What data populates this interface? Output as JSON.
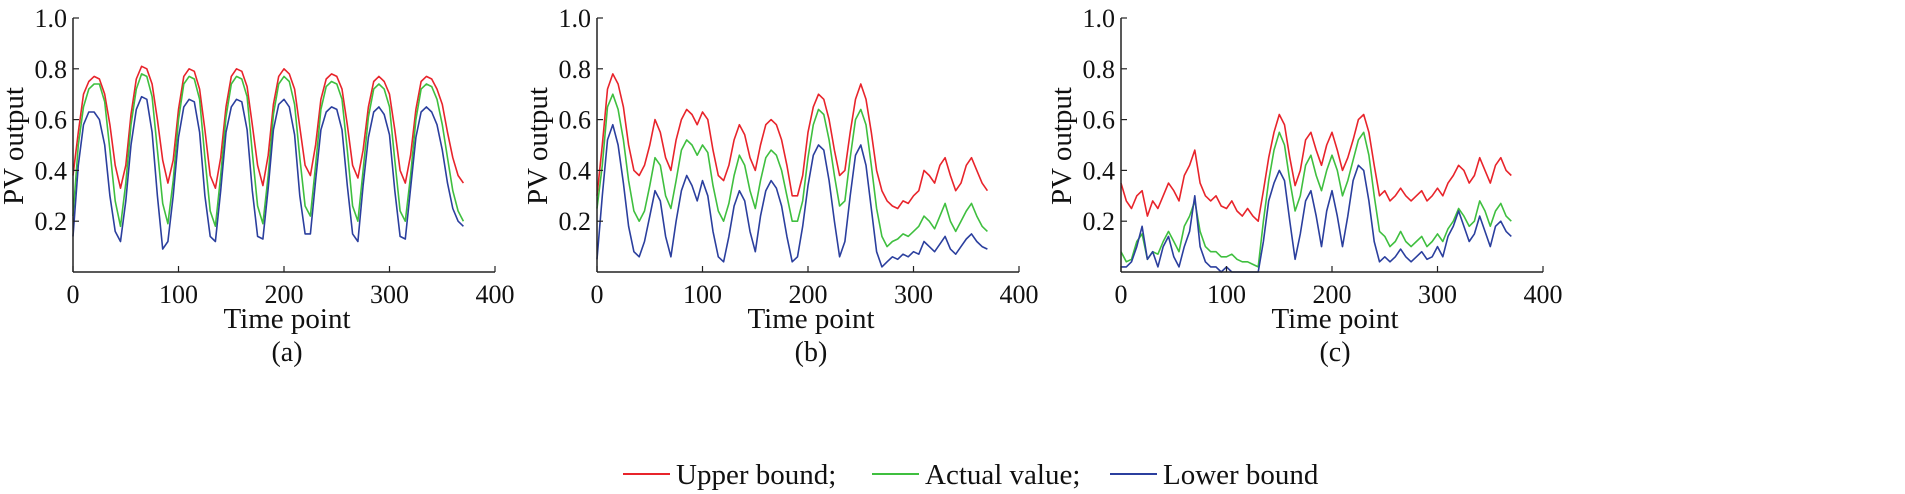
{
  "figure": {
    "legend": [
      {
        "label": "Upper bound;",
        "color": "#e8242b"
      },
      {
        "label": "Actual value;",
        "color": "#3fbf3f"
      },
      {
        "label": "Lower bound",
        "color": "#2b3f9e"
      }
    ]
  },
  "chart_data": [
    {
      "type": "line",
      "panel_label": "(a)",
      "xlabel": "Time point",
      "ylabel": "PV output",
      "xlim": [
        0,
        400
      ],
      "ylim": [
        0,
        1.0
      ],
      "xticks": [
        0,
        100,
        200,
        300,
        400
      ],
      "yticks": [
        0.2,
        0.4,
        0.6,
        0.8,
        1.0
      ],
      "ytick_labels": [
        "0.2",
        "0.4",
        "0.6",
        "0.8",
        "1.0"
      ],
      "grid": false,
      "series_colors": {
        "upper": "#e8242b",
        "actual": "#3fbf3f",
        "lower": "#2b3f9e"
      },
      "x": [
        0,
        5,
        10,
        15,
        20,
        25,
        30,
        35,
        40,
        45,
        50,
        55,
        60,
        65,
        70,
        75,
        80,
        85,
        90,
        95,
        100,
        105,
        110,
        115,
        120,
        125,
        130,
        135,
        140,
        145,
        150,
        155,
        160,
        165,
        170,
        175,
        180,
        185,
        190,
        195,
        200,
        205,
        210,
        215,
        220,
        225,
        230,
        235,
        240,
        245,
        250,
        255,
        260,
        265,
        270,
        275,
        280,
        285,
        290,
        295,
        300,
        305,
        310,
        315,
        320,
        325,
        330,
        335,
        340,
        345,
        350,
        355,
        360,
        365,
        370
      ],
      "series": [
        {
          "key": "upper",
          "values": [
            0.38,
            0.55,
            0.7,
            0.75,
            0.77,
            0.76,
            0.7,
            0.58,
            0.42,
            0.33,
            0.42,
            0.62,
            0.76,
            0.81,
            0.8,
            0.74,
            0.6,
            0.44,
            0.35,
            0.44,
            0.64,
            0.77,
            0.8,
            0.79,
            0.72,
            0.56,
            0.38,
            0.33,
            0.45,
            0.65,
            0.77,
            0.8,
            0.79,
            0.73,
            0.58,
            0.42,
            0.34,
            0.46,
            0.66,
            0.77,
            0.8,
            0.78,
            0.72,
            0.57,
            0.42,
            0.38,
            0.5,
            0.68,
            0.76,
            0.78,
            0.77,
            0.72,
            0.58,
            0.42,
            0.37,
            0.48,
            0.65,
            0.75,
            0.77,
            0.75,
            0.7,
            0.56,
            0.4,
            0.35,
            0.46,
            0.64,
            0.75,
            0.77,
            0.76,
            0.72,
            0.66,
            0.55,
            0.45,
            0.38,
            0.35
          ]
        },
        {
          "key": "actual",
          "values": [
            0.22,
            0.5,
            0.65,
            0.72,
            0.74,
            0.74,
            0.67,
            0.48,
            0.28,
            0.18,
            0.35,
            0.58,
            0.72,
            0.78,
            0.77,
            0.69,
            0.48,
            0.27,
            0.19,
            0.36,
            0.6,
            0.74,
            0.77,
            0.76,
            0.68,
            0.45,
            0.24,
            0.18,
            0.38,
            0.61,
            0.74,
            0.77,
            0.76,
            0.69,
            0.47,
            0.26,
            0.19,
            0.38,
            0.62,
            0.74,
            0.77,
            0.75,
            0.66,
            0.45,
            0.26,
            0.22,
            0.42,
            0.64,
            0.73,
            0.75,
            0.74,
            0.68,
            0.48,
            0.26,
            0.2,
            0.4,
            0.61,
            0.72,
            0.74,
            0.72,
            0.65,
            0.44,
            0.24,
            0.2,
            0.38,
            0.6,
            0.72,
            0.74,
            0.73,
            0.68,
            0.58,
            0.45,
            0.32,
            0.24,
            0.2
          ]
        },
        {
          "key": "lower",
          "values": [
            0.14,
            0.42,
            0.58,
            0.63,
            0.63,
            0.6,
            0.5,
            0.3,
            0.16,
            0.12,
            0.28,
            0.5,
            0.64,
            0.69,
            0.68,
            0.55,
            0.3,
            0.09,
            0.12,
            0.3,
            0.53,
            0.65,
            0.68,
            0.67,
            0.55,
            0.3,
            0.14,
            0.12,
            0.32,
            0.55,
            0.65,
            0.68,
            0.67,
            0.56,
            0.32,
            0.14,
            0.13,
            0.33,
            0.56,
            0.66,
            0.68,
            0.65,
            0.54,
            0.3,
            0.15,
            0.15,
            0.36,
            0.56,
            0.63,
            0.65,
            0.64,
            0.56,
            0.34,
            0.15,
            0.12,
            0.34,
            0.53,
            0.63,
            0.65,
            0.62,
            0.54,
            0.32,
            0.14,
            0.13,
            0.33,
            0.53,
            0.63,
            0.65,
            0.63,
            0.58,
            0.48,
            0.35,
            0.25,
            0.2,
            0.18
          ]
        }
      ]
    },
    {
      "type": "line",
      "panel_label": "(b)",
      "xlabel": "Time point",
      "ylabel": "PV output",
      "xlim": [
        0,
        400
      ],
      "ylim": [
        0,
        1.0
      ],
      "xticks": [
        0,
        100,
        200,
        300,
        400
      ],
      "yticks": [
        0.2,
        0.4,
        0.6,
        0.8,
        1.0
      ],
      "ytick_labels": [
        "0.2",
        "0.4",
        "0.6",
        "0.8",
        "1.0"
      ],
      "grid": false,
      "series_colors": {
        "upper": "#e8242b",
        "actual": "#3fbf3f",
        "lower": "#2b3f9e"
      },
      "x": [
        0,
        5,
        10,
        15,
        20,
        25,
        30,
        35,
        40,
        45,
        50,
        55,
        60,
        65,
        70,
        75,
        80,
        85,
        90,
        95,
        100,
        105,
        110,
        115,
        120,
        125,
        130,
        135,
        140,
        145,
        150,
        155,
        160,
        165,
        170,
        175,
        180,
        185,
        190,
        195,
        200,
        205,
        210,
        215,
        220,
        225,
        230,
        235,
        240,
        245,
        250,
        255,
        260,
        265,
        270,
        275,
        280,
        285,
        290,
        295,
        300,
        305,
        310,
        315,
        320,
        325,
        330,
        335,
        340,
        345,
        350,
        355,
        360,
        365,
        370
      ],
      "series": [
        {
          "key": "upper",
          "values": [
            0.3,
            0.5,
            0.72,
            0.78,
            0.74,
            0.65,
            0.5,
            0.4,
            0.38,
            0.42,
            0.5,
            0.6,
            0.55,
            0.45,
            0.4,
            0.52,
            0.6,
            0.64,
            0.62,
            0.58,
            0.63,
            0.6,
            0.48,
            0.38,
            0.36,
            0.42,
            0.52,
            0.58,
            0.54,
            0.45,
            0.4,
            0.5,
            0.58,
            0.6,
            0.58,
            0.52,
            0.42,
            0.3,
            0.3,
            0.38,
            0.55,
            0.65,
            0.7,
            0.68,
            0.6,
            0.48,
            0.38,
            0.4,
            0.55,
            0.68,
            0.74,
            0.68,
            0.55,
            0.4,
            0.32,
            0.28,
            0.26,
            0.25,
            0.28,
            0.27,
            0.3,
            0.32,
            0.4,
            0.38,
            0.35,
            0.42,
            0.45,
            0.38,
            0.32,
            0.35,
            0.42,
            0.45,
            0.4,
            0.35,
            0.32
          ]
        },
        {
          "key": "actual",
          "values": [
            0.25,
            0.42,
            0.65,
            0.7,
            0.64,
            0.52,
            0.36,
            0.24,
            0.2,
            0.24,
            0.34,
            0.45,
            0.42,
            0.3,
            0.25,
            0.36,
            0.48,
            0.52,
            0.5,
            0.46,
            0.5,
            0.47,
            0.34,
            0.24,
            0.2,
            0.27,
            0.38,
            0.46,
            0.42,
            0.32,
            0.25,
            0.36,
            0.45,
            0.48,
            0.46,
            0.4,
            0.3,
            0.2,
            0.2,
            0.28,
            0.45,
            0.58,
            0.64,
            0.62,
            0.52,
            0.38,
            0.26,
            0.28,
            0.45,
            0.6,
            0.64,
            0.58,
            0.42,
            0.25,
            0.14,
            0.1,
            0.12,
            0.13,
            0.15,
            0.14,
            0.16,
            0.18,
            0.22,
            0.2,
            0.17,
            0.22,
            0.27,
            0.2,
            0.16,
            0.2,
            0.24,
            0.27,
            0.22,
            0.18,
            0.16
          ]
        },
        {
          "key": "lower",
          "values": [
            0.05,
            0.3,
            0.52,
            0.58,
            0.5,
            0.35,
            0.18,
            0.08,
            0.06,
            0.12,
            0.22,
            0.32,
            0.28,
            0.14,
            0.06,
            0.2,
            0.32,
            0.38,
            0.34,
            0.28,
            0.36,
            0.3,
            0.16,
            0.06,
            0.04,
            0.14,
            0.26,
            0.32,
            0.28,
            0.16,
            0.08,
            0.22,
            0.32,
            0.36,
            0.33,
            0.26,
            0.14,
            0.04,
            0.06,
            0.18,
            0.34,
            0.46,
            0.5,
            0.48,
            0.36,
            0.2,
            0.06,
            0.12,
            0.3,
            0.46,
            0.5,
            0.42,
            0.25,
            0.08,
            0.02,
            0.04,
            0.06,
            0.05,
            0.07,
            0.06,
            0.08,
            0.07,
            0.12,
            0.1,
            0.08,
            0.11,
            0.14,
            0.09,
            0.07,
            0.1,
            0.13,
            0.15,
            0.12,
            0.1,
            0.09
          ]
        }
      ]
    },
    {
      "type": "line",
      "panel_label": "(c)",
      "xlabel": "Time point",
      "ylabel": "PV output",
      "xlim": [
        0,
        400
      ],
      "ylim": [
        0,
        1.0
      ],
      "xticks": [
        0,
        100,
        200,
        300,
        400
      ],
      "yticks": [
        0.2,
        0.4,
        0.6,
        0.8,
        1.0
      ],
      "ytick_labels": [
        "0.2",
        "0.4",
        "0.6",
        "0.8",
        "1.0"
      ],
      "grid": false,
      "series_colors": {
        "upper": "#e8242b",
        "actual": "#3fbf3f",
        "lower": "#2b3f9e"
      },
      "x": [
        0,
        5,
        10,
        15,
        20,
        25,
        30,
        35,
        40,
        45,
        50,
        55,
        60,
        65,
        70,
        75,
        80,
        85,
        90,
        95,
        100,
        105,
        110,
        115,
        120,
        125,
        130,
        135,
        140,
        145,
        150,
        155,
        160,
        165,
        170,
        175,
        180,
        185,
        190,
        195,
        200,
        205,
        210,
        215,
        220,
        225,
        230,
        235,
        240,
        245,
        250,
        255,
        260,
        265,
        270,
        275,
        280,
        285,
        290,
        295,
        300,
        305,
        310,
        315,
        320,
        325,
        330,
        335,
        340,
        345,
        350,
        355,
        360,
        365,
        370
      ],
      "series": [
        {
          "key": "upper",
          "values": [
            0.35,
            0.28,
            0.25,
            0.3,
            0.32,
            0.22,
            0.28,
            0.25,
            0.3,
            0.35,
            0.32,
            0.28,
            0.38,
            0.42,
            0.48,
            0.35,
            0.3,
            0.28,
            0.3,
            0.26,
            0.25,
            0.28,
            0.24,
            0.22,
            0.25,
            0.22,
            0.2,
            0.32,
            0.45,
            0.55,
            0.62,
            0.58,
            0.45,
            0.34,
            0.4,
            0.52,
            0.55,
            0.48,
            0.42,
            0.5,
            0.55,
            0.48,
            0.4,
            0.45,
            0.52,
            0.6,
            0.62,
            0.55,
            0.42,
            0.3,
            0.32,
            0.28,
            0.3,
            0.33,
            0.3,
            0.28,
            0.3,
            0.32,
            0.28,
            0.3,
            0.33,
            0.3,
            0.35,
            0.38,
            0.42,
            0.4,
            0.35,
            0.38,
            0.45,
            0.4,
            0.35,
            0.42,
            0.45,
            0.4,
            0.38
          ]
        },
        {
          "key": "actual",
          "values": [
            0.08,
            0.04,
            0.05,
            0.12,
            0.15,
            0.05,
            0.08,
            0.07,
            0.12,
            0.16,
            0.12,
            0.08,
            0.18,
            0.22,
            0.28,
            0.16,
            0.1,
            0.08,
            0.08,
            0.06,
            0.06,
            0.07,
            0.05,
            0.04,
            0.04,
            0.03,
            0.02,
            0.2,
            0.36,
            0.48,
            0.55,
            0.5,
            0.36,
            0.24,
            0.3,
            0.42,
            0.46,
            0.38,
            0.32,
            0.4,
            0.46,
            0.4,
            0.3,
            0.36,
            0.44,
            0.52,
            0.55,
            0.46,
            0.3,
            0.16,
            0.14,
            0.1,
            0.12,
            0.16,
            0.12,
            0.1,
            0.12,
            0.14,
            0.1,
            0.12,
            0.15,
            0.12,
            0.17,
            0.2,
            0.25,
            0.22,
            0.18,
            0.2,
            0.28,
            0.24,
            0.18,
            0.24,
            0.27,
            0.22,
            0.2
          ]
        },
        {
          "key": "lower",
          "values": [
            0.02,
            0.02,
            0.04,
            0.1,
            0.18,
            0.05,
            0.08,
            0.02,
            0.1,
            0.14,
            0.06,
            0.02,
            0.1,
            0.16,
            0.3,
            0.1,
            0.04,
            0.02,
            0.02,
            0.0,
            0.02,
            0.0,
            0.0,
            0.0,
            0.0,
            0.0,
            0.0,
            0.12,
            0.28,
            0.35,
            0.4,
            0.36,
            0.2,
            0.05,
            0.15,
            0.28,
            0.32,
            0.22,
            0.1,
            0.24,
            0.32,
            0.22,
            0.1,
            0.22,
            0.36,
            0.42,
            0.4,
            0.28,
            0.12,
            0.04,
            0.06,
            0.04,
            0.06,
            0.09,
            0.06,
            0.04,
            0.06,
            0.08,
            0.05,
            0.06,
            0.1,
            0.06,
            0.14,
            0.18,
            0.24,
            0.18,
            0.12,
            0.15,
            0.22,
            0.16,
            0.1,
            0.18,
            0.2,
            0.16,
            0.14
          ]
        }
      ]
    }
  ]
}
